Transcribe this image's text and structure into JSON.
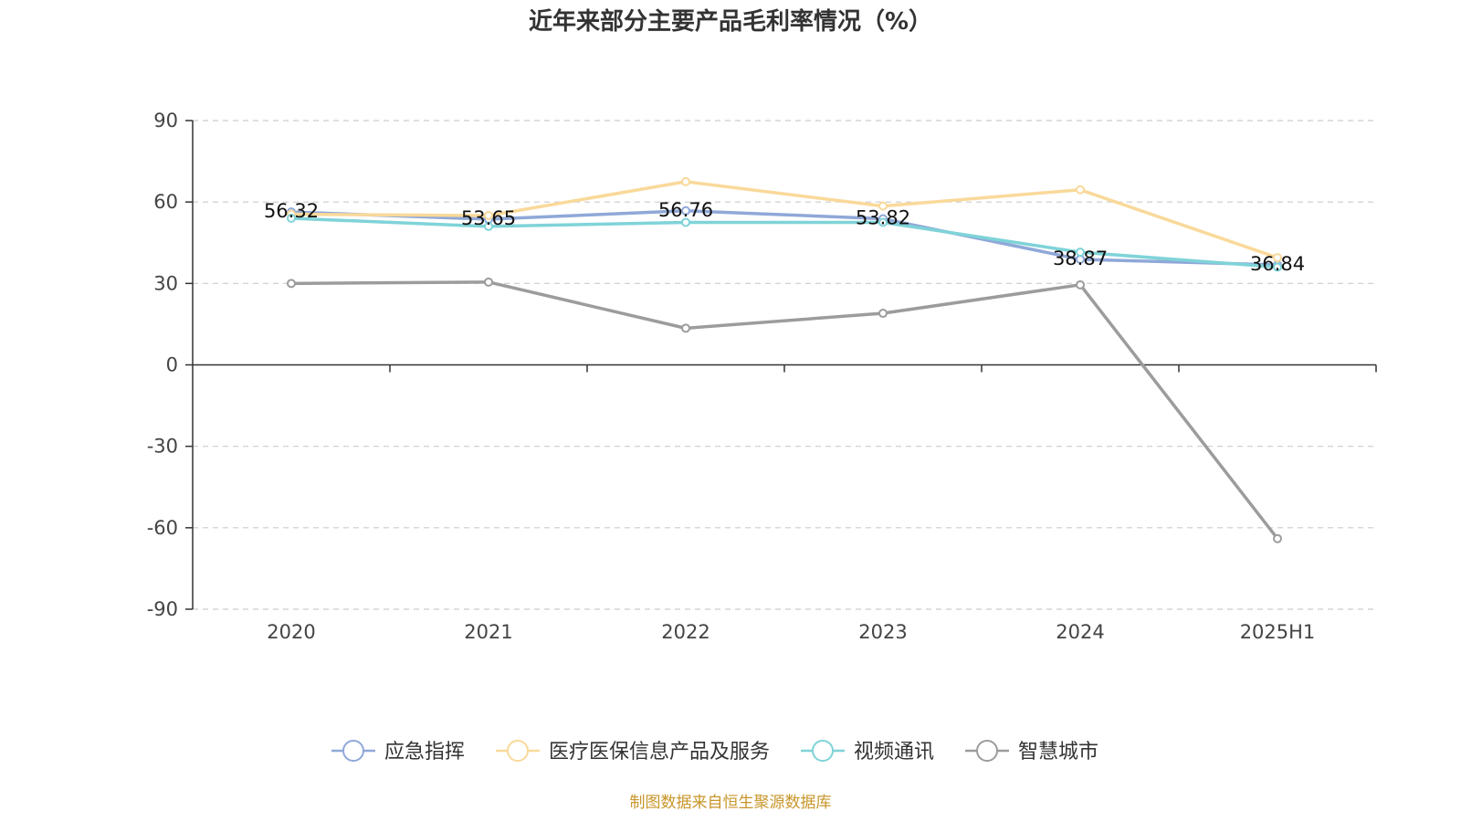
{
  "chart_data": {
    "type": "line",
    "title": "近年来部分主要产品毛利率情况（%）",
    "categories": [
      "2020",
      "2021",
      "2022",
      "2023",
      "2024",
      "2025H1"
    ],
    "ylim": [
      -90,
      90
    ],
    "yticks": [
      -90,
      -60,
      -30,
      0,
      30,
      60,
      90
    ],
    "grid": true,
    "legend_position": "bottom",
    "series": [
      {
        "name": "应急指挥",
        "color": "#8fa8d8",
        "values": [
          56.32,
          53.65,
          56.76,
          53.82,
          38.87,
          36.84
        ],
        "labels": [
          "56.32",
          "53.65",
          "56.76",
          "53.82",
          "38.87",
          "36.84"
        ]
      },
      {
        "name": "医疗医保信息产品及服务",
        "color": "#f9d99a",
        "values": [
          55.5,
          55.0,
          67.5,
          58.5,
          64.5,
          39.5
        ]
      },
      {
        "name": "视频通讯",
        "color": "#7fd3d8",
        "values": [
          54.0,
          51.0,
          52.5,
          52.5,
          41.5,
          36.0
        ]
      },
      {
        "name": "智慧城市",
        "color": "#9c9c9c",
        "values": [
          30.0,
          30.5,
          13.5,
          19.0,
          29.5,
          -64.0
        ]
      }
    ],
    "source": "制图数据来自恒生聚源数据库"
  }
}
